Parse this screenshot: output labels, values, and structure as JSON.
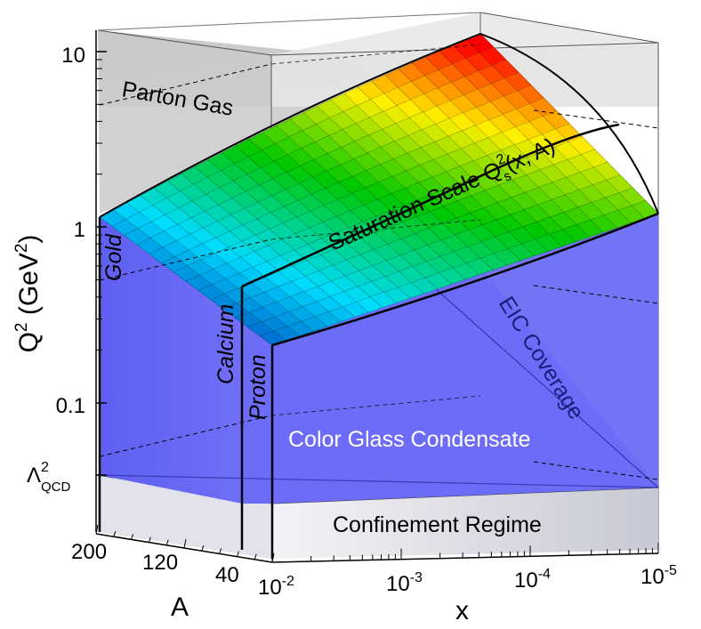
{
  "chart_data": {
    "type": "surface-3d",
    "title": "",
    "axes": {
      "y": {
        "label": "Q",
        "label_sup": "2",
        "label_rest": " (GeV",
        "label_sup2": "2",
        "label_end": ")",
        "scale": "log",
        "range": [
          0.03,
          13
        ],
        "ticks": [
          {
            "value": 10,
            "label": "10"
          },
          {
            "value": 1,
            "label": "1"
          },
          {
            "value": 0.1,
            "label": "0.1"
          }
        ],
        "special_tick": {
          "main": "Λ",
          "sup": "2",
          "sub": "QCD"
        }
      },
      "x": {
        "label": "x",
        "scale": "log",
        "range": [
          0.01,
          1e-05
        ],
        "ticks": [
          {
            "base": "10",
            "exp": "-2"
          },
          {
            "base": "10",
            "exp": "-3"
          },
          {
            "base": "10",
            "exp": "-4"
          },
          {
            "base": "10",
            "exp": "-5"
          }
        ]
      },
      "a": {
        "label": "A",
        "range": [
          1,
          200
        ],
        "ticks": [
          "200",
          "120",
          "40"
        ]
      }
    },
    "regions": {
      "parton_gas": "Parton Gas",
      "cgc": "Color Glass Condensate",
      "confinement": "Confinement Regime",
      "eic": "EIC Coverage"
    },
    "surface": {
      "main": "Saturation Scale Q",
      "sup": "2",
      "sub": "s",
      "tail": "(x, A)"
    },
    "nuclei": [
      {
        "name": "Gold",
        "A": 197
      },
      {
        "name": "Calcium",
        "A": 40
      },
      {
        "name": "Proton",
        "A": 1
      }
    ],
    "colors": {
      "cgc_fill": "#6c6cf8",
      "parton_fill": "#cdcdcd",
      "confinement_fill": "#dcdde6",
      "surface_low": "#0000a0",
      "surface_high": "#ff0000"
    }
  }
}
